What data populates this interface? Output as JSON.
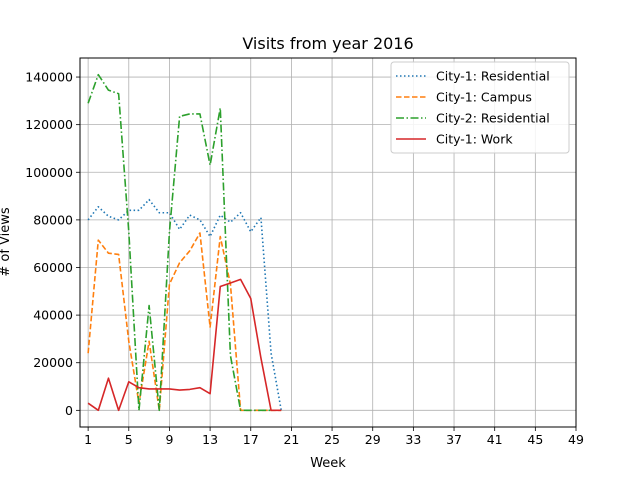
{
  "chart_data": {
    "type": "line",
    "title": "Visits from year 2016",
    "xlabel": "Week",
    "ylabel": "# of Views",
    "xlim": [
      0.2,
      49
    ],
    "ylim": [
      -7000,
      148000
    ],
    "xticks": [
      1,
      5,
      9,
      13,
      17,
      21,
      25,
      29,
      33,
      37,
      41,
      45,
      49
    ],
    "yticks": [
      0,
      20000,
      40000,
      60000,
      80000,
      100000,
      120000,
      140000
    ],
    "grid": true,
    "legend_position": "top-right",
    "series": [
      {
        "name": "City-1: Residential",
        "style": "dotted",
        "color": "#1f77b4",
        "x": [
          1,
          2,
          3,
          4,
          5,
          6,
          7,
          8,
          9,
          10,
          11,
          12,
          13,
          14,
          15,
          16,
          17,
          18,
          19,
          20
        ],
        "y": [
          80000,
          85500,
          81500,
          80000,
          84000,
          84000,
          88500,
          83000,
          83000,
          76000,
          82000,
          80000,
          73000,
          82000,
          79000,
          83000,
          75000,
          81000,
          24000,
          0
        ]
      },
      {
        "name": "City-1: Campus",
        "style": "dashed",
        "color": "#ff7f0e",
        "x": [
          1,
          2,
          3,
          4,
          5,
          6,
          7,
          8,
          9,
          10,
          11,
          12,
          13,
          14,
          15,
          16,
          17,
          18,
          19,
          20
        ],
        "y": [
          24000,
          71500,
          66000,
          65500,
          29000,
          3000,
          29000,
          0,
          53000,
          62000,
          67000,
          74500,
          35000,
          73000,
          53000,
          0,
          0,
          0,
          0,
          0
        ]
      },
      {
        "name": "City-2: Residential",
        "style": "dashdot",
        "color": "#2ca02c",
        "x": [
          1,
          2,
          3,
          4,
          5,
          6,
          7,
          8,
          9,
          10,
          11,
          12,
          13,
          14,
          15,
          16,
          17,
          18,
          19
        ],
        "y": [
          129000,
          141000,
          134500,
          133000,
          75000,
          0,
          44000,
          0,
          75000,
          123500,
          124500,
          124500,
          103000,
          127000,
          23000,
          0,
          0,
          0,
          0
        ]
      },
      {
        "name": "City-1: Work",
        "style": "solid",
        "color": "#d62728",
        "x": [
          1,
          2,
          3,
          4,
          5,
          6,
          7,
          8,
          9,
          10,
          11,
          12,
          13,
          14,
          15,
          16,
          17,
          18,
          19,
          20
        ],
        "y": [
          3000,
          0,
          13500,
          0,
          12000,
          9500,
          9000,
          9000,
          9000,
          8500,
          8800,
          9500,
          7000,
          52000,
          53500,
          55000,
          47000,
          22000,
          0,
          0
        ]
      }
    ]
  }
}
